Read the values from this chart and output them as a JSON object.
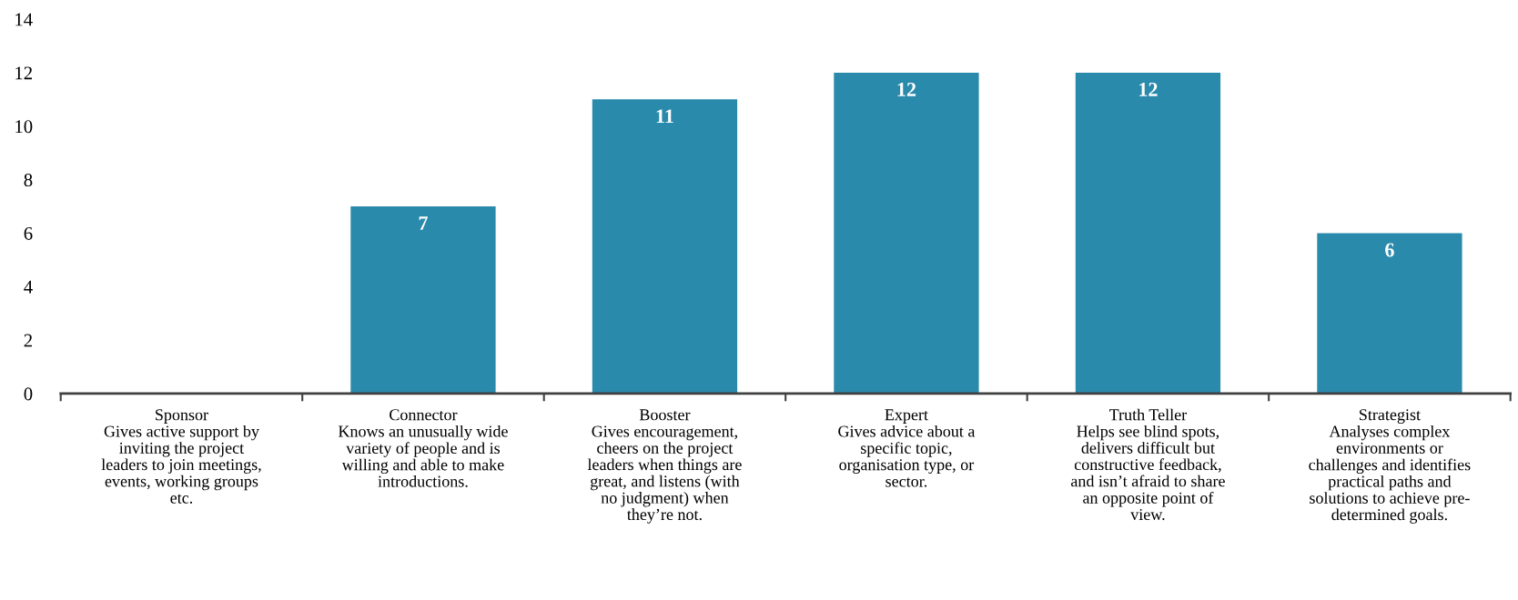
{
  "chart_data": {
    "type": "bar",
    "categories": [
      "Sponsor\nGives active support by\ninviting the project\nleaders to join meetings,\nevents, working groups\netc.",
      "Connector\nKnows an unusually wide\nvariety of people and is\nwilling and able to make\nintroductions.",
      "Booster\nGives encouragement,\ncheers on the project\nleaders when things are\ngreat, and listens (with\nno judgment) when\nthey’re not.",
      "Expert\nGives advice about a\nspecific topic,\norganisation type, or\nsector.",
      "Truth Teller\nHelps see blind spots,\ndelivers difficult but\nconstructive feedback,\nand isn’t afraid to share\nan opposite point of\nview.",
      "Strategist\nAnalyses complex\nenvironments or\nchallenges and identifies\npractical paths and\nsolutions to achieve pre-\ndetermined goals."
    ],
    "values": [
      0,
      7,
      11,
      12,
      12,
      6
    ],
    "value_labels": [
      null,
      "7",
      "11",
      "12",
      "12",
      "6"
    ],
    "color": "#2a8aab",
    "ylim": [
      0,
      14
    ],
    "yticks": [
      0,
      2,
      4,
      6,
      8,
      10,
      12,
      14
    ],
    "grid": false,
    "legend": false
  }
}
